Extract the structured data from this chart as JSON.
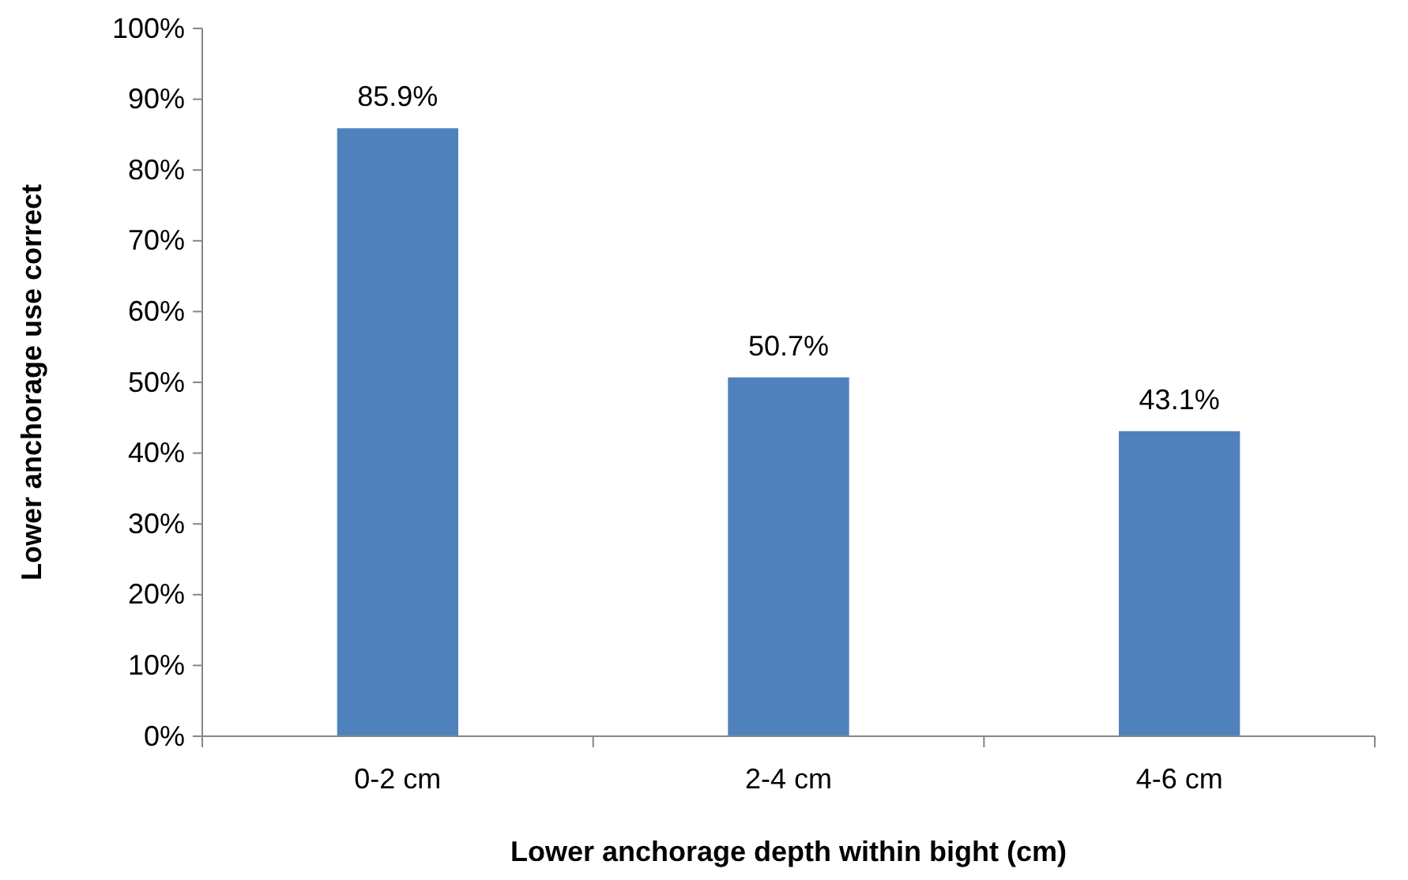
{
  "chart_data": {
    "type": "bar",
    "xlabel": "Lower anchorage depth within bight (cm)",
    "ylabel": "Lower anchorage use correct",
    "categories": [
      "0-2 cm",
      "2-4 cm",
      "4-6 cm"
    ],
    "values": [
      85.9,
      50.7,
      43.1
    ],
    "color": "#4f81bd",
    "value_labels": [
      "85.9%",
      "50.7%",
      "43.1%"
    ],
    "ylim": [
      0,
      100
    ],
    "yticks": [
      {
        "value": 0,
        "label": "0%"
      },
      {
        "value": 10,
        "label": "10%"
      },
      {
        "value": 20,
        "label": "20%"
      },
      {
        "value": 30,
        "label": "30%"
      },
      {
        "value": 40,
        "label": "40%"
      },
      {
        "value": 50,
        "label": "50%"
      },
      {
        "value": 60,
        "label": "60%"
      },
      {
        "value": 70,
        "label": "70%"
      },
      {
        "value": 80,
        "label": "80%"
      },
      {
        "value": 90,
        "label": "90%"
      },
      {
        "value": 100,
        "label": "100%"
      }
    ],
    "grid": false
  }
}
